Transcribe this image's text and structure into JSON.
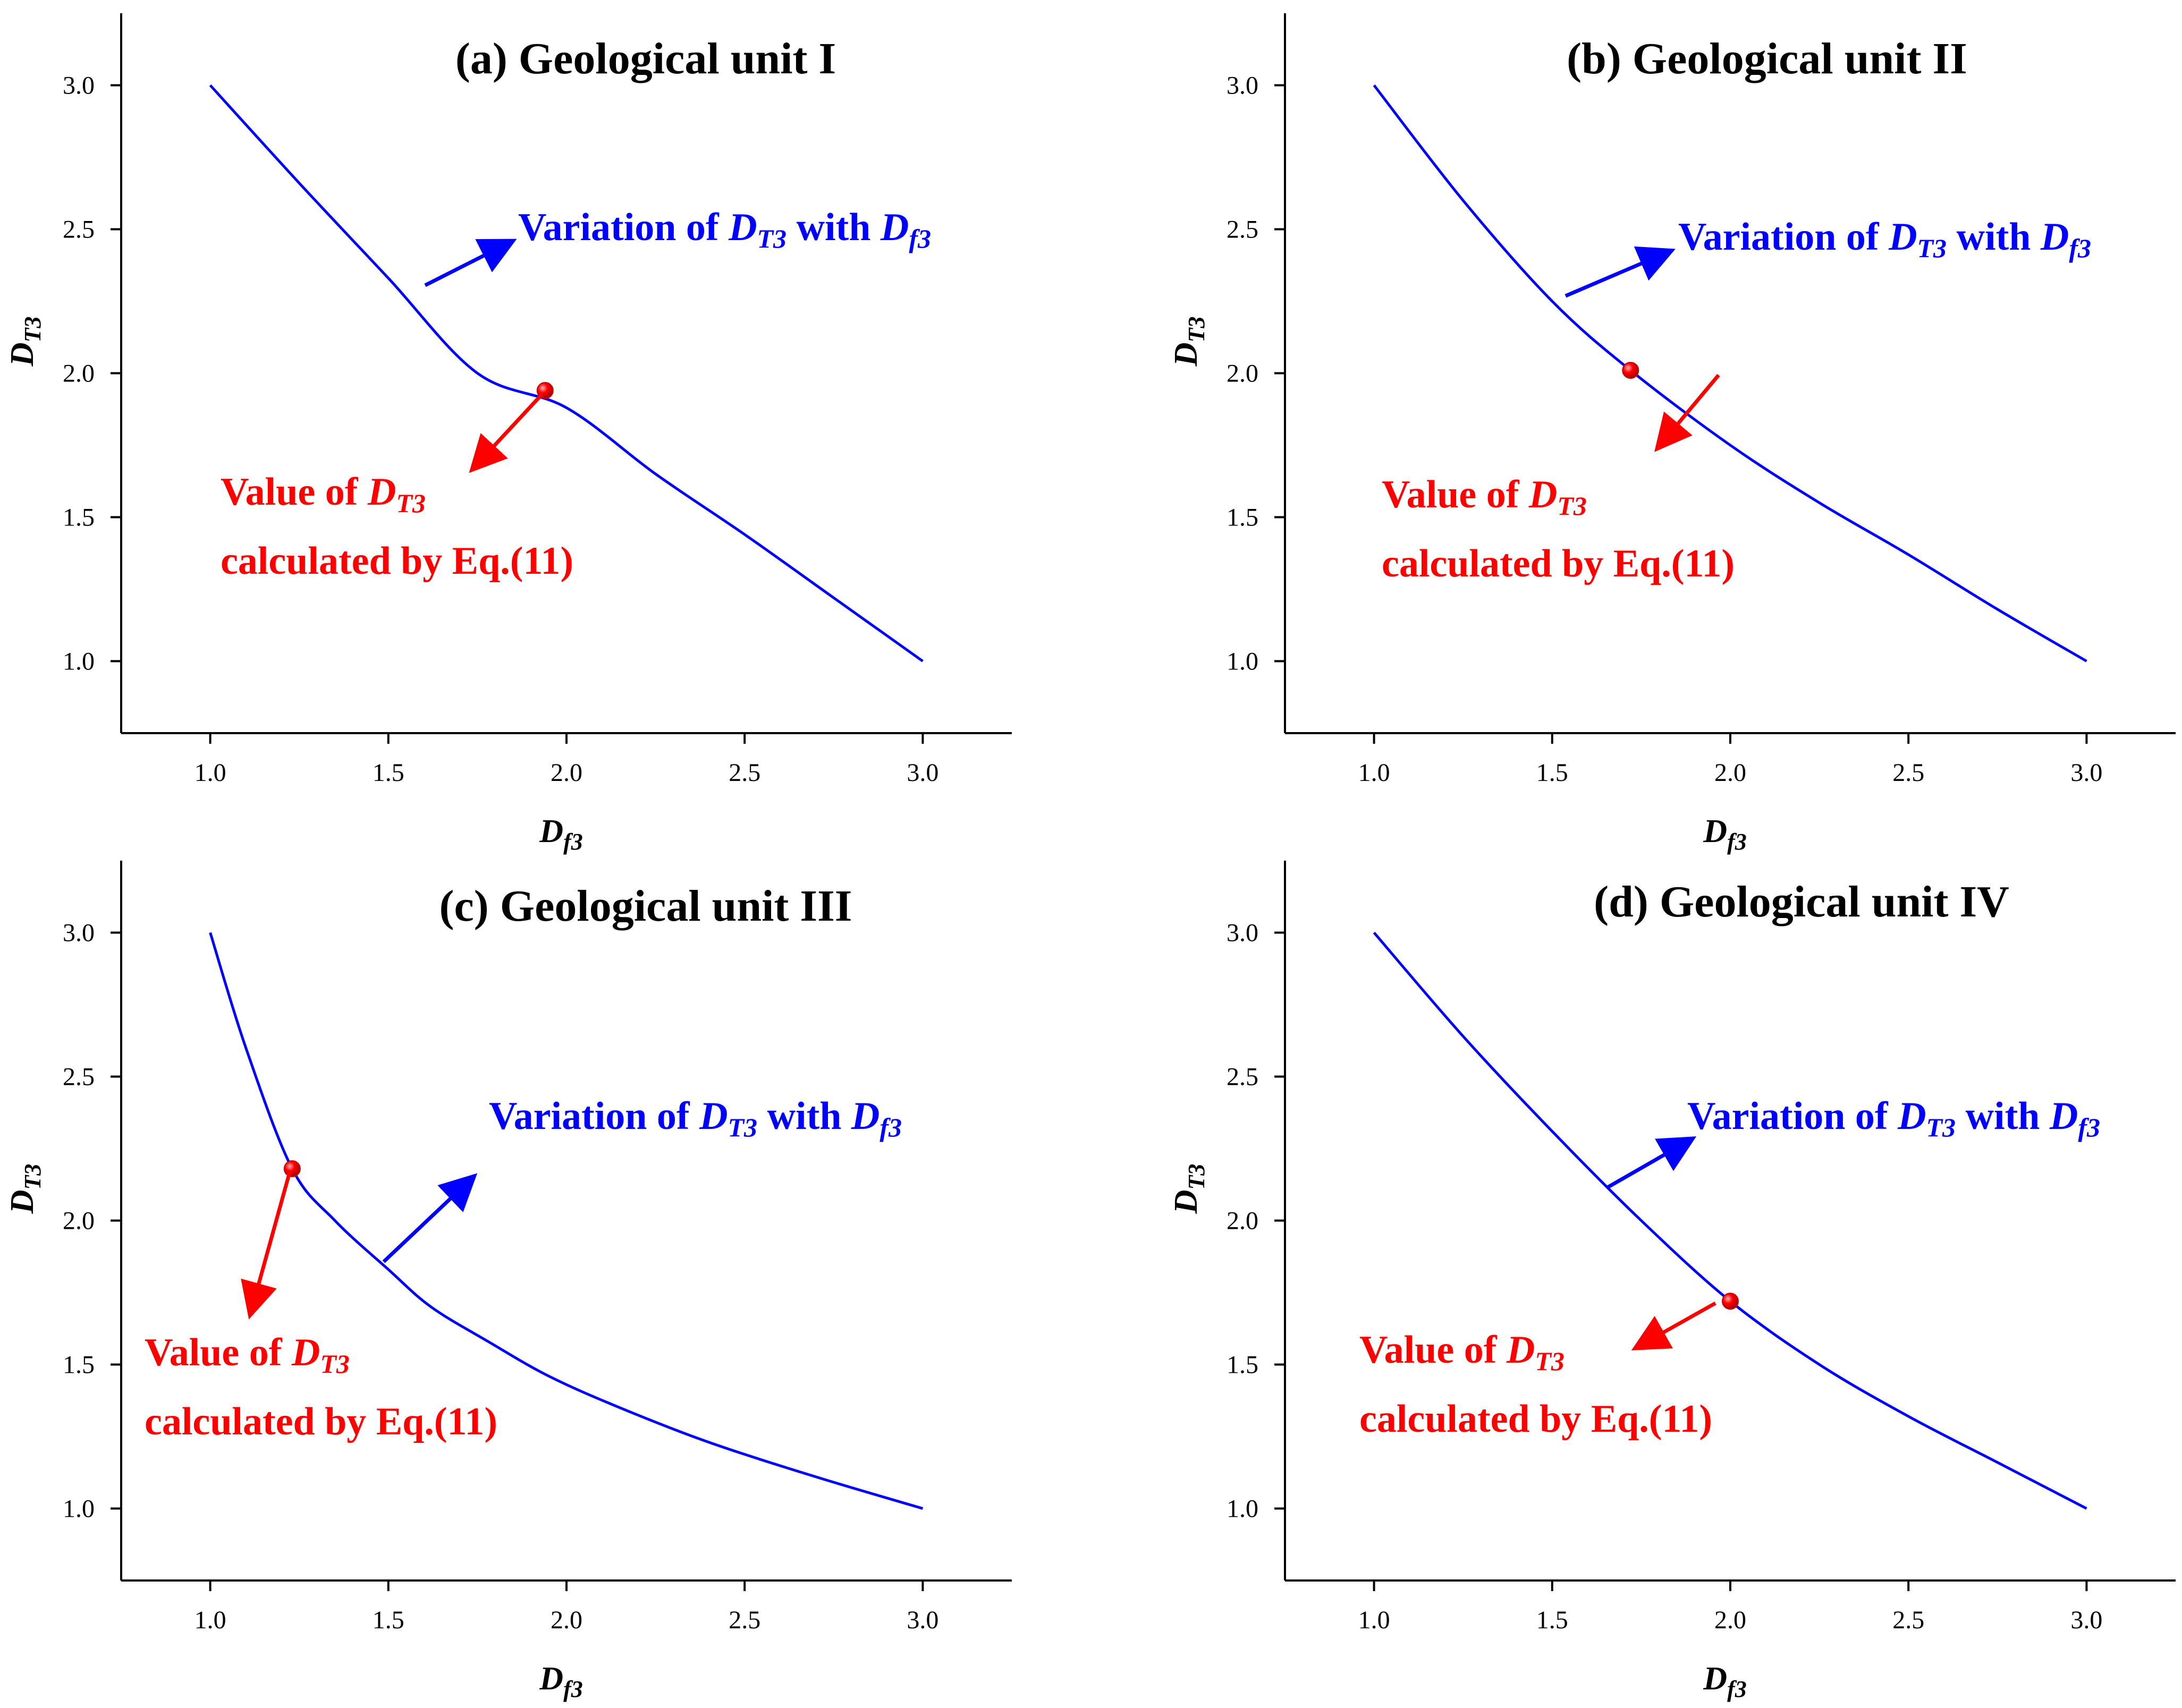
{
  "colors": {
    "curve": "#0000ff",
    "point": "#ff0000",
    "axis": "#000000",
    "arrow_blue": "#0000ff",
    "arrow_red": "#ff0000"
  },
  "annotation": {
    "variation_prefix": "Variation of ",
    "variation_mid": " with ",
    "value_prefix": "Value of ",
    "calculated": "calculated by Eq.(11)",
    "D": "D",
    "T3": "T3",
    "f3": "f3"
  },
  "chart_data": [
    {
      "type": "line",
      "title": "(a) Geological unit I",
      "xlabel": "Df3",
      "ylabel": "DT3",
      "xlim": [
        0.75,
        3.25
      ],
      "ylim": [
        0.75,
        3.25
      ],
      "xticks": [
        "1.0",
        "1.5",
        "2.0",
        "2.5",
        "3.0"
      ],
      "yticks": [
        "1.0",
        "1.5",
        "2.0",
        "2.5",
        "3.0"
      ],
      "grid": false,
      "series": [
        {
          "x": [
            1.0,
            1.25,
            1.5,
            1.75,
            2.0,
            2.25,
            2.5,
            2.75,
            3.0
          ],
          "y": [
            3.0,
            2.66,
            2.33,
            2.0,
            1.88,
            1.65,
            1.44,
            1.22,
            1.0
          ]
        }
      ],
      "point": {
        "x": 1.94,
        "y": 1.94
      }
    },
    {
      "type": "line",
      "title": "(b) Geological unit II",
      "xlabel": "Df3",
      "ylabel": "DT3",
      "xlim": [
        0.75,
        3.25
      ],
      "ylim": [
        0.75,
        3.25
      ],
      "xticks": [
        "1.0",
        "1.5",
        "2.0",
        "2.5",
        "3.0"
      ],
      "yticks": [
        "1.0",
        "1.5",
        "2.0",
        "2.5",
        "3.0"
      ],
      "grid": false,
      "series": [
        {
          "x": [
            1.0,
            1.25,
            1.5,
            1.72,
            2.0,
            2.25,
            2.5,
            2.75,
            3.0
          ],
          "y": [
            3.0,
            2.6,
            2.25,
            2.01,
            1.75,
            1.55,
            1.37,
            1.18,
            1.0
          ]
        }
      ],
      "point": {
        "x": 1.72,
        "y": 2.01
      }
    },
    {
      "type": "line",
      "title": "(c) Geological unit III",
      "xlabel": "Df3",
      "ylabel": "DT3",
      "xlim": [
        0.75,
        3.25
      ],
      "ylim": [
        0.75,
        3.25
      ],
      "xticks": [
        "1.0",
        "1.5",
        "2.0",
        "2.5",
        "3.0"
      ],
      "yticks": [
        "1.0",
        "1.5",
        "2.0",
        "2.5",
        "3.0"
      ],
      "grid": false,
      "series": [
        {
          "x": [
            1.0,
            1.1,
            1.23,
            1.35,
            1.5,
            1.62,
            1.78,
            1.95,
            2.15,
            2.4,
            2.7,
            3.0
          ],
          "y": [
            3.0,
            2.6,
            2.18,
            2.0,
            1.83,
            1.7,
            1.58,
            1.46,
            1.35,
            1.23,
            1.11,
            1.0
          ]
        }
      ],
      "point": {
        "x": 1.23,
        "y": 2.18
      }
    },
    {
      "type": "line",
      "title": "(d) Geological unit IV",
      "xlabel": "Df3",
      "ylabel": "DT3",
      "xlim": [
        0.75,
        3.25
      ],
      "ylim": [
        0.75,
        3.25
      ],
      "xticks": [
        "1.0",
        "1.5",
        "2.0",
        "2.5",
        "3.0"
      ],
      "yticks": [
        "1.0",
        "1.5",
        "2.0",
        "2.5",
        "3.0"
      ],
      "grid": false,
      "series": [
        {
          "x": [
            1.0,
            1.25,
            1.5,
            1.75,
            2.0,
            2.25,
            2.5,
            2.75,
            3.0
          ],
          "y": [
            3.0,
            2.64,
            2.31,
            2.0,
            1.72,
            1.5,
            1.32,
            1.16,
            1.0
          ]
        }
      ],
      "point": {
        "x": 2.0,
        "y": 1.72
      }
    }
  ]
}
